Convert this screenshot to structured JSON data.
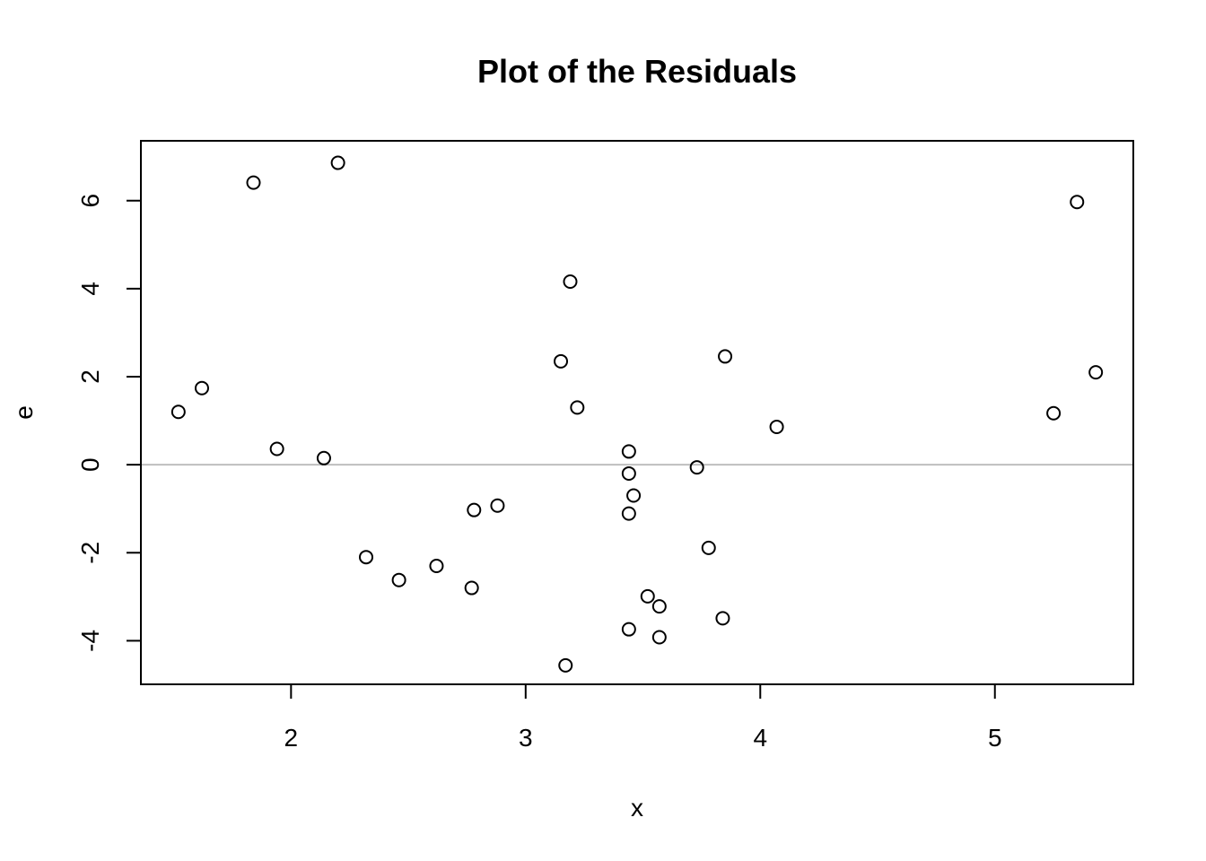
{
  "chart_data": {
    "type": "scatter",
    "title": "Plot of the Residuals",
    "xlabel": "x",
    "ylabel": "e",
    "xlim": [
      1.36,
      5.59
    ],
    "ylim": [
      -4.99,
      7.36
    ],
    "xticks": [
      2,
      3,
      4,
      5
    ],
    "yticks": [
      -4,
      -2,
      0,
      2,
      4,
      6
    ],
    "reference_line": {
      "y": 0,
      "color": "#bebebe"
    },
    "grid": false,
    "points": [
      {
        "x": 1.52,
        "y": 1.2
      },
      {
        "x": 1.62,
        "y": 1.74
      },
      {
        "x": 1.84,
        "y": 6.41
      },
      {
        "x": 1.94,
        "y": 0.36
      },
      {
        "x": 2.14,
        "y": 0.15
      },
      {
        "x": 2.2,
        "y": 6.86
      },
      {
        "x": 2.32,
        "y": -2.1
      },
      {
        "x": 2.46,
        "y": -2.62
      },
      {
        "x": 2.62,
        "y": -2.3
      },
      {
        "x": 2.77,
        "y": -2.8
      },
      {
        "x": 2.78,
        "y": -1.03
      },
      {
        "x": 2.88,
        "y": -0.93
      },
      {
        "x": 3.15,
        "y": 2.35
      },
      {
        "x": 3.17,
        "y": -4.56
      },
      {
        "x": 3.19,
        "y": 4.16
      },
      {
        "x": 3.22,
        "y": 1.3
      },
      {
        "x": 3.44,
        "y": -3.74
      },
      {
        "x": 3.44,
        "y": 0.3
      },
      {
        "x": 3.44,
        "y": -0.2
      },
      {
        "x": 3.44,
        "y": -1.11
      },
      {
        "x": 3.46,
        "y": -0.7
      },
      {
        "x": 3.52,
        "y": -2.99
      },
      {
        "x": 3.57,
        "y": -3.22
      },
      {
        "x": 3.57,
        "y": -3.92
      },
      {
        "x": 3.73,
        "y": -0.06
      },
      {
        "x": 3.78,
        "y": -1.89
      },
      {
        "x": 3.84,
        "y": -3.49
      },
      {
        "x": 3.85,
        "y": 2.46
      },
      {
        "x": 4.07,
        "y": 0.86
      },
      {
        "x": 5.25,
        "y": 1.17
      },
      {
        "x": 5.35,
        "y": 5.97
      },
      {
        "x": 5.43,
        "y": 2.1
      }
    ]
  }
}
